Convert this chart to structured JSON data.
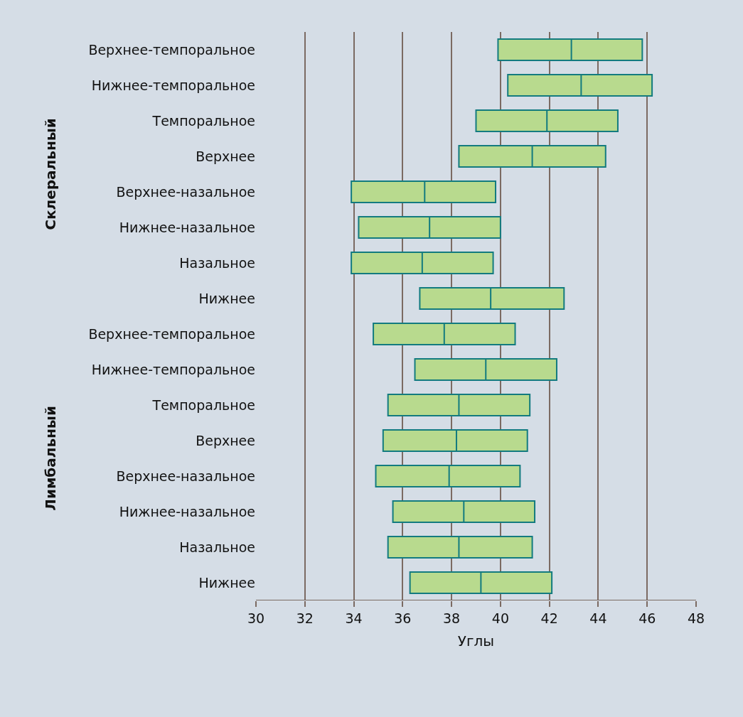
{
  "chart_data": {
    "type": "box",
    "orientation": "horizontal",
    "xlabel": "Углы",
    "categories": [
      "Верхнее-темпоральное",
      "Нижнее-темпоральное",
      "Темпоральное",
      "Верхнее",
      "Верхнее-назальное",
      "Нижнее-назальное",
      "Назальное",
      "Нижнее",
      "Верхнее-темпоральное",
      "Нижнее-темпоральное",
      "Темпоральное",
      "Верхнее",
      "Верхнее-назальное",
      "Нижнее-назальное",
      "Назальное",
      "Нижнее"
    ],
    "boxes": [
      {
        "low": 39.9,
        "q1": 39.9,
        "median": 42.9,
        "q3": 45.8,
        "high": 45.8
      },
      {
        "low": 40.3,
        "q1": 40.3,
        "median": 43.3,
        "q3": 46.2,
        "high": 46.2
      },
      {
        "low": 39.0,
        "q1": 39.0,
        "median": 41.9,
        "q3": 44.8,
        "high": 44.8
      },
      {
        "low": 38.3,
        "q1": 38.3,
        "median": 41.3,
        "q3": 44.3,
        "high": 44.3
      },
      {
        "low": 33.9,
        "q1": 33.9,
        "median": 36.9,
        "q3": 39.8,
        "high": 39.8
      },
      {
        "low": 34.2,
        "q1": 34.2,
        "median": 37.1,
        "q3": 40.0,
        "high": 40.0
      },
      {
        "low": 33.9,
        "q1": 33.9,
        "median": 36.8,
        "q3": 39.7,
        "high": 39.7
      },
      {
        "low": 36.7,
        "q1": 36.7,
        "median": 39.6,
        "q3": 42.6,
        "high": 42.6
      },
      {
        "low": 34.8,
        "q1": 34.8,
        "median": 37.7,
        "q3": 40.6,
        "high": 40.6
      },
      {
        "low": 36.5,
        "q1": 36.5,
        "median": 39.4,
        "q3": 42.3,
        "high": 42.3
      },
      {
        "low": 35.4,
        "q1": 35.4,
        "median": 38.3,
        "q3": 41.2,
        "high": 41.2
      },
      {
        "low": 35.2,
        "q1": 35.2,
        "median": 38.2,
        "q3": 41.1,
        "high": 41.1
      },
      {
        "low": 34.9,
        "q1": 34.9,
        "median": 37.9,
        "q3": 40.8,
        "high": 40.8
      },
      {
        "low": 35.6,
        "q1": 35.6,
        "median": 38.5,
        "q3": 41.4,
        "high": 41.4
      },
      {
        "low": 35.4,
        "q1": 35.4,
        "median": 38.3,
        "q3": 41.3,
        "high": 41.3
      },
      {
        "low": 36.3,
        "q1": 36.3,
        "median": 39.2,
        "q3": 42.1,
        "high": 42.1
      }
    ],
    "color": "#b8da8e",
    "xlim": [
      30,
      48
    ],
    "xticks": [
      30,
      32,
      34,
      36,
      38,
      40,
      42,
      44,
      46,
      48
    ],
    "grid": "x",
    "annotations": [
      "Склеральный",
      "Лимбальный"
    ]
  }
}
